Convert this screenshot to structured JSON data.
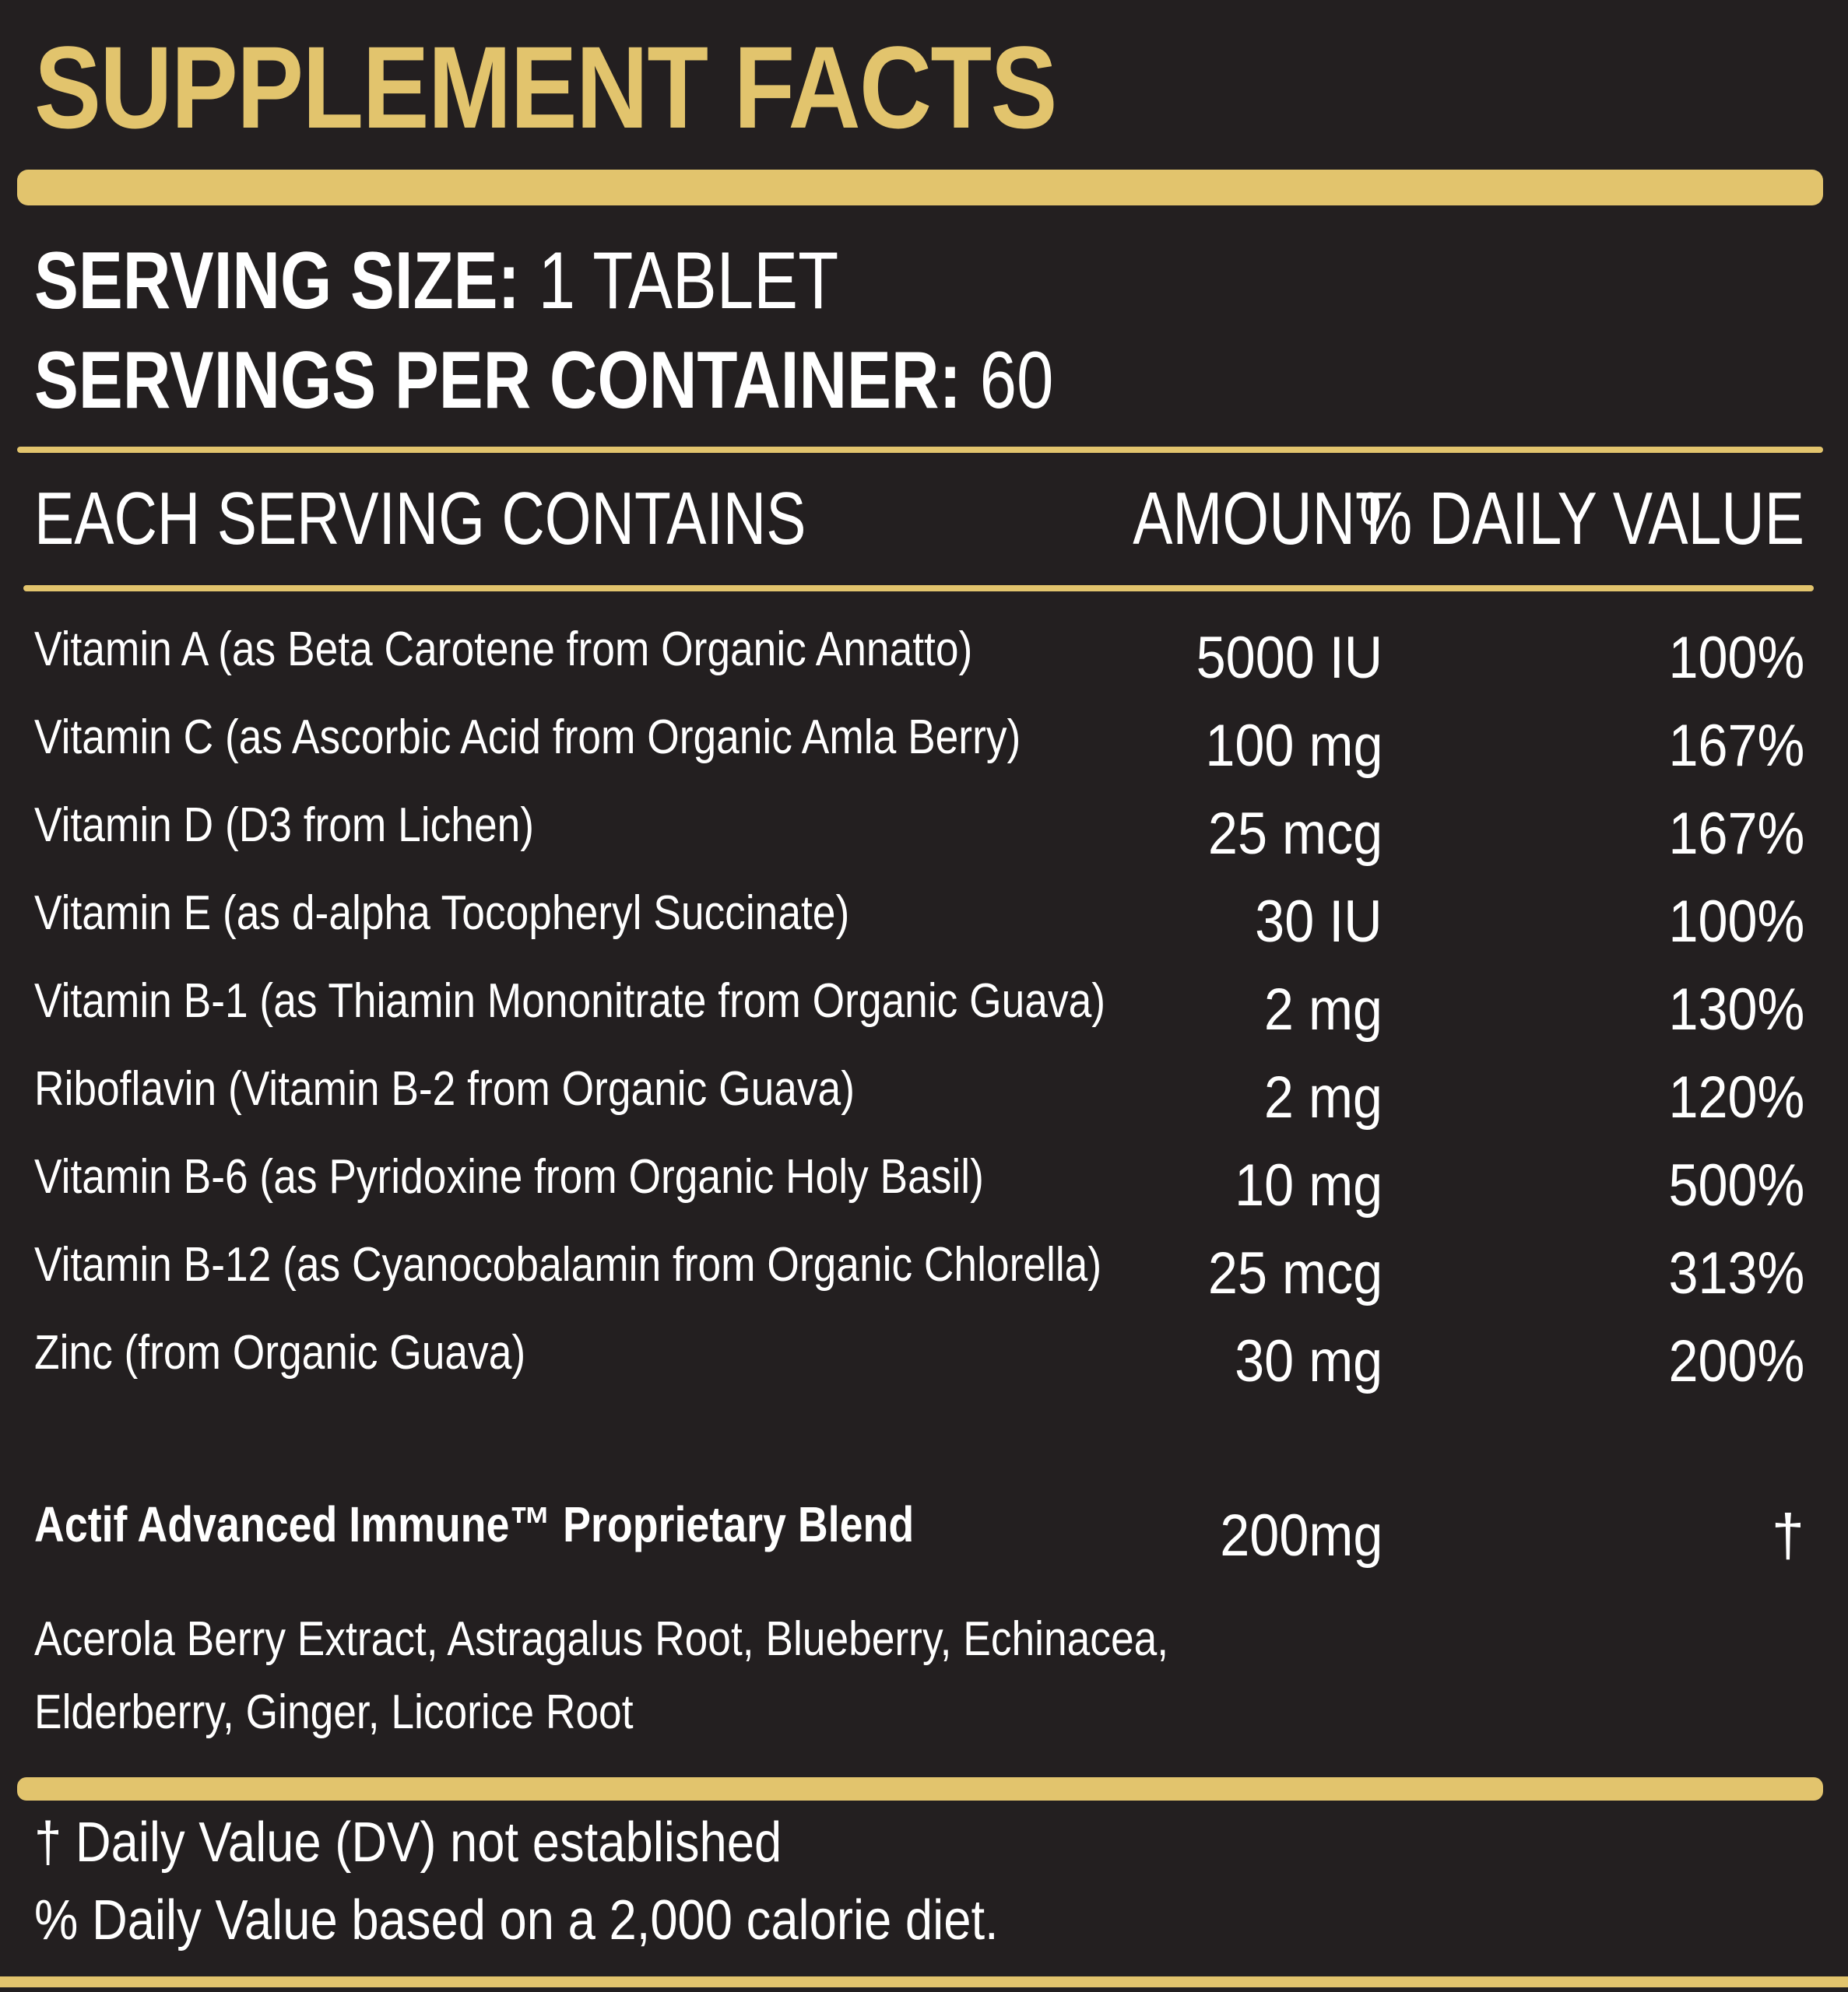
{
  "colors": {
    "background": "#231f20",
    "accent": "#e2c46d",
    "text": "#ffffff"
  },
  "title": "SUPPLEMENT FACTS",
  "serving": {
    "size_label": "SERVING SIZE:",
    "size_value": "1 TABLET",
    "per_container_label": "SERVINGS PER CONTAINER:",
    "per_container_value": "60"
  },
  "header": {
    "contains": "EACH SERVING CONTAINS",
    "amount": "AMOUNT",
    "daily_value": "% DAILY VALUE"
  },
  "nutrients": [
    {
      "name": "Vitamin A (as Beta Carotene from Organic Annatto)",
      "amount": "5000 IU",
      "dv": "100%"
    },
    {
      "name": "Vitamin C (as Ascorbic Acid from Organic Amla Berry)",
      "amount": "100 mg",
      "dv": "167%"
    },
    {
      "name": "Vitamin D (D3 from Lichen)",
      "amount": "25 mcg",
      "dv": "167%"
    },
    {
      "name": "Vitamin E (as d-alpha Tocopheryl Succinate)",
      "amount": "30 IU",
      "dv": "100%"
    },
    {
      "name": "Vitamin B-1 (as Thiamin Mononitrate from Organic Guava)",
      "amount": "2 mg",
      "dv": "130%"
    },
    {
      "name": "Riboflavin (Vitamin B-2 from Organic Guava)",
      "amount": "2 mg",
      "dv": "120%"
    },
    {
      "name": "Vitamin B-6 (as Pyridoxine from Organic Holy Basil)",
      "amount": "10 mg",
      "dv": "500%"
    },
    {
      "name": "Vitamin B-12 (as Cyanocobalamin from Organic Chlorella)",
      "amount": "25 mcg",
      "dv": "313%"
    },
    {
      "name": "Zinc (from Organic Guava)",
      "amount": "30 mg",
      "dv": "200%"
    }
  ],
  "blend": {
    "name": "Actif Advanced Immune™ Proprietary Blend",
    "amount": "200mg",
    "dv": "†",
    "ingredients_line1": "Acerola Berry Extract, Astragalus Root, Blueberry, Echinacea,",
    "ingredients_line2": "Elderberry, Ginger, Licorice Root"
  },
  "footnotes": {
    "dv_not_established": "† Daily Value (DV) not established",
    "calorie_basis": "% Daily Value based on a 2,000 calorie diet."
  }
}
